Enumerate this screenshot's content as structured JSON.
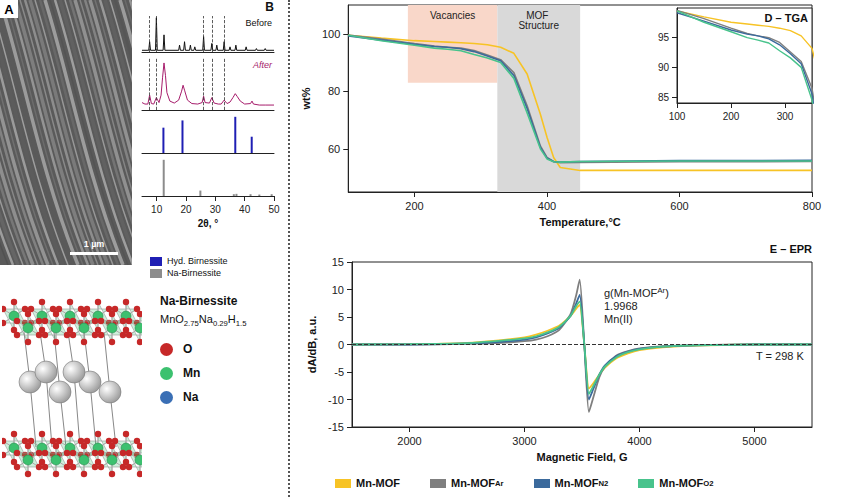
{
  "panel_a": {
    "letter": "A",
    "scale_bar": "1 µm"
  },
  "structure": {
    "title": "Na-Birnessite",
    "formula": [
      "Mn",
      "O",
      "2.75",
      "Na",
      "0.29",
      "H",
      "1.5"
    ],
    "legend": [
      {
        "name": "O",
        "color": "#c62828"
      },
      {
        "name": "Mn",
        "color": "#3cc16f"
      },
      {
        "name": "Na",
        "color": "#3a6fb5"
      }
    ]
  },
  "chart_data": [
    {
      "type": "line",
      "title": "B",
      "xlabel": "2θ, °",
      "xlim": [
        5,
        50
      ],
      "xticks": [
        10,
        20,
        30,
        40,
        50
      ],
      "tick_labels": "x",
      "grid": false,
      "legend": "bottom",
      "vlines": [
        7.6,
        9.9,
        26,
        28.8,
        33
      ],
      "series": [
        {
          "name": "Before",
          "type": "line",
          "color": "#111111",
          "ylim": [
            0,
            1.05
          ],
          "x": [
            5,
            7.3,
            7.6,
            7.9,
            9.6,
            9.9,
            10.2,
            12.2,
            12.5,
            12.8,
            17.5,
            17.8,
            18.1,
            19.2,
            19.5,
            19.8,
            21.2,
            21.5,
            21.8,
            22.7,
            23,
            23.3,
            25.7,
            26,
            26.3,
            28.5,
            28.8,
            29.1,
            30.2,
            30.5,
            30.8,
            32.7,
            33,
            33.3,
            34.7,
            35,
            35.3,
            36.7,
            37,
            37.3,
            40.2,
            40.5,
            40.8,
            43.7,
            44,
            44.3,
            46.7,
            47,
            47.3,
            50
          ],
          "values": [
            0.05,
            0.05,
            0.3,
            0.05,
            0.05,
            1.0,
            0.05,
            0.05,
            0.5,
            0.05,
            0.05,
            0.2,
            0.05,
            0.05,
            0.3,
            0.05,
            0.05,
            0.2,
            0.05,
            0.05,
            0.15,
            0.05,
            0.05,
            0.45,
            0.05,
            0.05,
            0.25,
            0.05,
            0.05,
            0.2,
            0.05,
            0.05,
            0.3,
            0.05,
            0.05,
            0.15,
            0.05,
            0.05,
            0.2,
            0.05,
            0.05,
            0.15,
            0.05,
            0.05,
            0.1,
            0.05,
            0.05,
            0.1,
            0.05,
            0.05
          ]
        },
        {
          "name": "After",
          "type": "line",
          "color": "#a61c6b",
          "ylim": [
            0,
            1.05
          ],
          "x": [
            5,
            6,
            7,
            7.6,
            8.2,
            9,
            9.9,
            10.8,
            11.5,
            12,
            12.5,
            13,
            13.5,
            14.5,
            16,
            17.5,
            18.5,
            19,
            19.5,
            20.5,
            22,
            24,
            25.5,
            26,
            26.5,
            28,
            28.8,
            29.6,
            31,
            32,
            33,
            34,
            35,
            36,
            36.8,
            37.5,
            38.5,
            40,
            42,
            42.5,
            43,
            45,
            47,
            50
          ],
          "values": [
            0.15,
            0.12,
            0.12,
            0.3,
            0.13,
            0.12,
            0.25,
            0.15,
            0.3,
            0.65,
            0.95,
            0.7,
            0.35,
            0.18,
            0.14,
            0.2,
            0.38,
            0.5,
            0.4,
            0.2,
            0.13,
            0.12,
            0.15,
            0.28,
            0.15,
            0.14,
            0.25,
            0.14,
            0.12,
            0.12,
            0.2,
            0.13,
            0.16,
            0.25,
            0.33,
            0.27,
            0.18,
            0.12,
            0.13,
            0.18,
            0.12,
            0.1,
            0.1,
            0.1
          ]
        },
        {
          "name": "Hyd. Birnessite",
          "type": "bar",
          "color": "#1f1fb4",
          "ylim": [
            0,
            1.05
          ],
          "x": [
            12.3,
            18.8,
            36.8,
            42.4
          ],
          "values": [
            0.7,
            0.9,
            1.0,
            0.45
          ]
        },
        {
          "name": "Na-Birnessite",
          "type": "bar",
          "color": "#8c8c8c",
          "ylim": [
            0,
            1.05
          ],
          "x": [
            12.4,
            24.9,
            36.3,
            37.2,
            42,
            45,
            49.2
          ],
          "values": [
            1.0,
            0.15,
            0.05,
            0.06,
            0.05,
            0.04,
            0.05
          ]
        }
      ]
    },
    {
      "type": "line",
      "title": "D – TGA",
      "xlabel": "Temperature,°C",
      "ylabel": "wt%",
      "xlim": [
        100,
        800
      ],
      "xticks": [
        200,
        400,
        600,
        800
      ],
      "ylim": [
        45,
        110
      ],
      "yticks": [
        60,
        80,
        100
      ],
      "grid": false,
      "legend": "bottom",
      "regions": [
        {
          "label": "Vacancies",
          "x": [
            190,
            325
          ],
          "y": [
            83,
            110
          ],
          "color": "#f9d7c9"
        },
        {
          "label": "MOF Structure",
          "x": [
            325,
            450
          ],
          "y": [
            45,
            110
          ],
          "color": "#d9d9d9"
        }
      ],
      "inset": {
        "xlim": [
          100,
          350
        ],
        "xticks": [
          100,
          200,
          300
        ],
        "ylim": [
          84,
          100
        ],
        "yticks": [
          85,
          90,
          95
        ]
      },
      "x": [
        100,
        150,
        200,
        230,
        250,
        270,
        290,
        310,
        330,
        350,
        370,
        390,
        400,
        410,
        420,
        450,
        600,
        800
      ],
      "series": [
        {
          "name": "Mn-MOF",
          "color": "#f7c325",
          "values": [
            99.5,
            98.5,
            97.6,
            97.3,
            97.1,
            96.9,
            96.6,
            96.2,
            95.3,
            93.2,
            86,
            72,
            64,
            57,
            53.5,
            52.5,
            52.5,
            52.5
          ]
        },
        {
          "name": "Mn-MOF",
          "superscript": "Ar",
          "color": "#7f7f7f",
          "values": [
            99.6,
            98.2,
            96.6,
            95.7,
            95.3,
            95.0,
            94.2,
            92.6,
            91.0,
            86.5,
            75,
            61,
            57,
            55.5,
            55.2,
            55.3,
            55.5,
            55.6
          ]
        },
        {
          "name": "Mn-MOF",
          "superscript": "N2",
          "color": "#3b6a9c",
          "values": [
            99.2,
            97.8,
            96.3,
            95.6,
            95.3,
            94.8,
            93.8,
            92.3,
            90.6,
            85.5,
            74,
            60.5,
            56.8,
            55.6,
            55.4,
            55.6,
            55.9,
            56
          ]
        },
        {
          "name": "Mn-MOF",
          "superscript": "O2",
          "color": "#48c38c",
          "values": [
            99.5,
            97.6,
            96.0,
            95.0,
            94.6,
            94.1,
            92.8,
            91.6,
            90.0,
            84.5,
            72.5,
            60,
            56.5,
            55.5,
            55.4,
            55.6,
            55.8,
            55.8
          ]
        }
      ]
    },
    {
      "type": "line",
      "title": "E – EPR",
      "xlabel": "Magnetic Field, G",
      "ylabel": "dA/dB, a.u.",
      "xlim": [
        1500,
        5500
      ],
      "xticks": [
        2000,
        3000,
        4000,
        5000
      ],
      "ylim": [
        -15,
        15
      ],
      "yticks": [
        -15,
        -10,
        -5,
        0,
        5,
        10,
        15
      ],
      "grid": false,
      "legend": "bottom",
      "hlines": [
        0
      ],
      "annotations": [
        "T = 298 K"
      ],
      "g_factor": {
        "label": [
          "g(Mn-MOF",
          "Ar",
          ")"
        ],
        "value": 1.9968,
        "note": "Mn(II)"
      },
      "x": [
        1500,
        2000,
        2500,
        2800,
        3000,
        3100,
        3200,
        3300,
        3400,
        3450,
        3480,
        3520,
        3560,
        3600,
        3650,
        3700,
        3800,
        3900,
        4000,
        4200,
        4500,
        5000,
        5500
      ],
      "series": [
        {
          "name": "Mn-MOF",
          "color": "#f7c325",
          "values": [
            0,
            0.05,
            0.3,
            0.8,
            1.3,
            1.8,
            2.5,
            3.4,
            5.2,
            6.5,
            7.2,
            0,
            -8,
            -7,
            -5.5,
            -4.2,
            -2.5,
            -1.6,
            -1,
            -0.5,
            -0.2,
            0,
            0
          ]
        },
        {
          "name": "Mn-MOF",
          "superscript": "Ar",
          "color": "#7f7f7f",
          "values": [
            0,
            0,
            0.1,
            0.3,
            0.6,
            0.9,
            1.5,
            2.6,
            5.5,
            9,
            11.8,
            0,
            -12.3,
            -9.5,
            -6,
            -4,
            -2,
            -1.2,
            -0.7,
            -0.3,
            -0.1,
            0,
            0
          ]
        },
        {
          "name": "Mn-MOF",
          "superscript": "N2",
          "color": "#3b6a9c",
          "values": [
            0,
            0,
            0.2,
            0.5,
            0.9,
            1.3,
            2,
            3,
            5.2,
            7.5,
            9,
            0,
            -10,
            -8,
            -5.5,
            -3.8,
            -2.1,
            -1.3,
            -0.8,
            -0.4,
            -0.15,
            0,
            0
          ]
        },
        {
          "name": "Mn-MOF",
          "superscript": "O2",
          "color": "#48c38c",
          "values": [
            0,
            0.05,
            0.25,
            0.7,
            1.1,
            1.5,
            2.2,
            3.2,
            5.2,
            7,
            7.8,
            0,
            -9,
            -7.5,
            -5.5,
            -4,
            -2.3,
            -1.4,
            -0.9,
            -0.4,
            -0.15,
            0,
            0
          ]
        }
      ]
    }
  ]
}
